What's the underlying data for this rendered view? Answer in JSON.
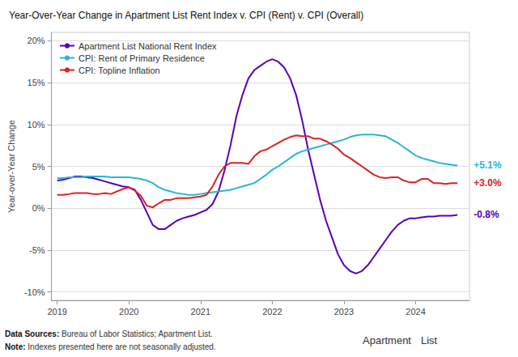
{
  "chart_data": {
    "type": "line",
    "title": "Year-Over-Year Change in Apartment List Rent Index v. CPI (Rent) v. CPI (Overall)",
    "ylabel": "Year-over-Year Change",
    "x": [
      2019.0,
      2019.083,
      2019.167,
      2019.25,
      2019.333,
      2019.417,
      2019.5,
      2019.583,
      2019.667,
      2019.75,
      2019.833,
      2019.917,
      2020.0,
      2020.083,
      2020.167,
      2020.25,
      2020.333,
      2020.417,
      2020.5,
      2020.583,
      2020.667,
      2020.75,
      2020.833,
      2020.917,
      2021.0,
      2021.083,
      2021.167,
      2021.25,
      2021.333,
      2021.417,
      2021.5,
      2021.583,
      2021.667,
      2021.75,
      2021.833,
      2021.917,
      2022.0,
      2022.083,
      2022.167,
      2022.25,
      2022.333,
      2022.417,
      2022.5,
      2022.583,
      2022.667,
      2022.75,
      2022.833,
      2022.917,
      2023.0,
      2023.083,
      2023.167,
      2023.25,
      2023.333,
      2023.417,
      2023.5,
      2023.583,
      2023.667,
      2023.75,
      2023.833,
      2023.917,
      2024.0,
      2024.083,
      2024.167,
      2024.25,
      2024.333,
      2024.417,
      2024.5,
      2024.583
    ],
    "series": [
      {
        "name": "Apartment List National Rent Index",
        "color": "#5500bb",
        "values": [
          0.033,
          0.034,
          0.036,
          0.038,
          0.038,
          0.037,
          0.036,
          0.034,
          0.032,
          0.03,
          0.028,
          0.026,
          0.025,
          0.022,
          0.01,
          -0.005,
          -0.02,
          -0.025,
          -0.025,
          -0.02,
          -0.015,
          -0.012,
          -0.01,
          -0.008,
          -0.005,
          -0.002,
          0.005,
          0.02,
          0.045,
          0.075,
          0.11,
          0.135,
          0.155,
          0.165,
          0.17,
          0.175,
          0.178,
          0.175,
          0.168,
          0.155,
          0.135,
          0.105,
          0.07,
          0.04,
          0.01,
          -0.015,
          -0.035,
          -0.055,
          -0.068,
          -0.075,
          -0.078,
          -0.075,
          -0.068,
          -0.058,
          -0.048,
          -0.038,
          -0.028,
          -0.02,
          -0.015,
          -0.012,
          -0.012,
          -0.011,
          -0.01,
          -0.01,
          -0.009,
          -0.009,
          -0.009,
          -0.008
        ]
      },
      {
        "name": "CPI: Rent of Primary Residence",
        "color": "#29b5d8",
        "values": [
          0.036,
          0.036,
          0.037,
          0.037,
          0.037,
          0.038,
          0.038,
          0.038,
          0.038,
          0.037,
          0.037,
          0.037,
          0.037,
          0.036,
          0.035,
          0.033,
          0.03,
          0.025,
          0.022,
          0.02,
          0.018,
          0.017,
          0.016,
          0.016,
          0.017,
          0.018,
          0.019,
          0.02,
          0.021,
          0.022,
          0.024,
          0.026,
          0.028,
          0.03,
          0.035,
          0.04,
          0.046,
          0.05,
          0.055,
          0.06,
          0.065,
          0.068,
          0.07,
          0.072,
          0.074,
          0.076,
          0.078,
          0.08,
          0.082,
          0.085,
          0.087,
          0.088,
          0.088,
          0.088,
          0.087,
          0.086,
          0.082,
          0.078,
          0.073,
          0.068,
          0.063,
          0.06,
          0.058,
          0.056,
          0.054,
          0.053,
          0.052,
          0.051
        ]
      },
      {
        "name": "CPI: Topline Inflation",
        "color": "#dd2222",
        "values": [
          0.016,
          0.016,
          0.017,
          0.018,
          0.018,
          0.018,
          0.017,
          0.017,
          0.018,
          0.017,
          0.02,
          0.023,
          0.025,
          0.021,
          0.015,
          0.003,
          0.001,
          0.006,
          0.01,
          0.01,
          0.012,
          0.012,
          0.012,
          0.013,
          0.014,
          0.016,
          0.026,
          0.04,
          0.05,
          0.054,
          0.054,
          0.054,
          0.053,
          0.062,
          0.068,
          0.07,
          0.074,
          0.078,
          0.082,
          0.085,
          0.087,
          0.086,
          0.086,
          0.083,
          0.083,
          0.08,
          0.076,
          0.071,
          0.064,
          0.06,
          0.055,
          0.05,
          0.045,
          0.04,
          0.037,
          0.036,
          0.037,
          0.037,
          0.033,
          0.031,
          0.031,
          0.035,
          0.035,
          0.03,
          0.03,
          0.029,
          0.03,
          0.03
        ]
      }
    ],
    "xlim": [
      2018.92,
      2024.75
    ],
    "xticks": [
      2019,
      2020,
      2021,
      2022,
      2023,
      2024
    ],
    "ylim": [
      -0.11,
      0.21
    ],
    "yticks": [
      {
        "value": -0.1,
        "label": "-10%"
      },
      {
        "value": -0.05,
        "label": "-5%"
      },
      {
        "value": 0.0,
        "label": "0%"
      },
      {
        "value": 0.05,
        "label": "5%"
      },
      {
        "value": 0.1,
        "label": "10%"
      },
      {
        "value": 0.15,
        "label": "15%"
      },
      {
        "value": 0.2,
        "label": "20%"
      }
    ],
    "grid": true,
    "legend": "upper left",
    "annotations": [
      {
        "text": "+5.1%",
        "x": 2024.583,
        "y": 0.051,
        "color": "#29b5d8"
      },
      {
        "text": "+3.0%",
        "x": 2024.583,
        "y": 0.03,
        "color": "#dd2222"
      },
      {
        "text": "-0.8%",
        "x": 2024.583,
        "y": -0.008,
        "color": "#5500bb"
      }
    ],
    "footer": [
      {
        "bold": "Data Sources:",
        "text": "Bureau of Labor Statistics; Apartment List."
      },
      {
        "bold": "Note:",
        "text": "Indexes presented here are not seasonally adjusted."
      }
    ],
    "logo": [
      "Apartment",
      "List"
    ]
  }
}
